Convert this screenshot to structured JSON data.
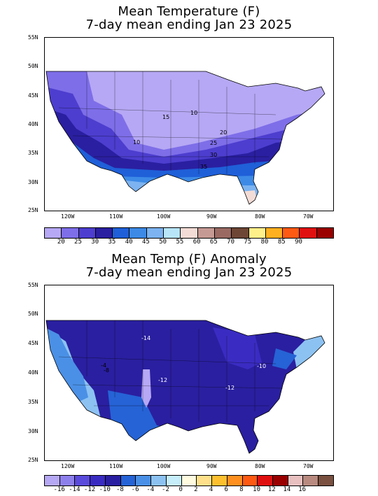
{
  "map1": {
    "title_line1": "Mean Temperature (F)",
    "title_line2": "7-day mean ending Jan 23 2025",
    "lat_labels": [
      "55N",
      "50N",
      "45N",
      "40N",
      "35N",
      "30N",
      "25N"
    ],
    "lon_labels": [
      "120W",
      "110W",
      "100W",
      "90W",
      "80W",
      "70W"
    ],
    "legend_labels": [
      "20",
      "25",
      "30",
      "35",
      "40",
      "45",
      "50",
      "55",
      "60",
      "65",
      "70",
      "75",
      "80",
      "85",
      "90"
    ],
    "legend_colors": [
      "#b6a8f4",
      "#7e6ee8",
      "#4d3ecf",
      "#2a1fa0",
      "#1f5fd8",
      "#3c8ae6",
      "#7cb3f0",
      "#b8e6f8",
      "#f3dcd6",
      "#c69a94",
      "#9a6a62",
      "#6e4636",
      "#fff08a",
      "#ffb020",
      "#ff5a14",
      "#e01010",
      "#9a0000"
    ],
    "contour_labels": [
      "10",
      "15",
      "10",
      "20",
      "25",
      "30",
      "35"
    ]
  },
  "map2": {
    "title_line1": "Mean Temp (F) Anomaly",
    "title_line2": "7-day mean ending Jan 23 2025",
    "lat_labels": [
      "55N",
      "50N",
      "45N",
      "40N",
      "35N",
      "30N",
      "25N"
    ],
    "lon_labels": [
      "120W",
      "110W",
      "100W",
      "90W",
      "80W",
      "70W"
    ],
    "legend_labels": [
      "-16",
      "-14",
      "-12",
      "-10",
      "-8",
      "-6",
      "-4",
      "-2",
      "0",
      "2",
      "4",
      "6",
      "8",
      "10",
      "12",
      "14",
      "16"
    ],
    "legend_colors": [
      "#b6a8f4",
      "#8e80ec",
      "#5b4bdc",
      "#3a2cc2",
      "#2a1fa0",
      "#2563d6",
      "#4a90e6",
      "#8cc2f2",
      "#c6eefa",
      "#fffbe0",
      "#ffe08a",
      "#ffc030",
      "#ff9020",
      "#ff5a14",
      "#e01010",
      "#9a0000",
      "#e8c0c0",
      "#b88a80",
      "#7a5040"
    ],
    "contour_labels": [
      "-14",
      "-4",
      "-8",
      "-12",
      "-10",
      "-12"
    ]
  }
}
